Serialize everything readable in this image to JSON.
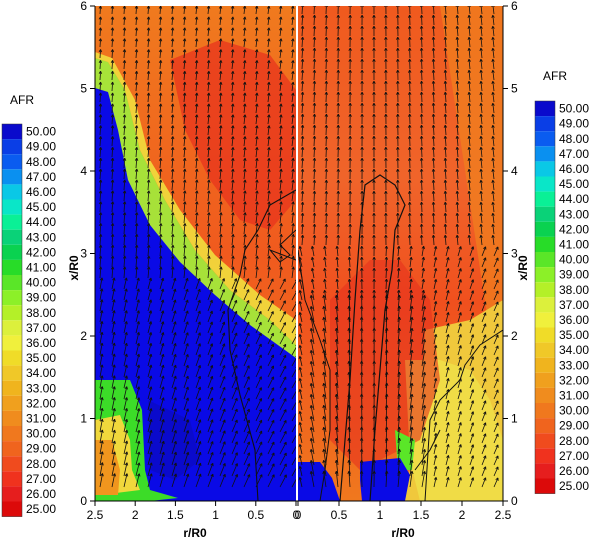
{
  "chart_data": {
    "type": "heatmap",
    "title": "",
    "xlabel": "r/R0",
    "ylabel": "x/R0",
    "panels": [
      {
        "name": "left",
        "x_ticks": [
          "2.5",
          "2",
          "1.5",
          "1",
          "0.5",
          "0"
        ],
        "x_range": [
          2.5,
          0
        ],
        "y_ticks": [
          "0",
          "1",
          "2",
          "3",
          "4",
          "5",
          "6"
        ],
        "y_range": [
          0,
          6
        ]
      },
      {
        "name": "right",
        "x_ticks": [
          "0",
          "0.5",
          "1",
          "1.5",
          "2",
          "2.5"
        ],
        "x_range": [
          0,
          2.5
        ],
        "y_ticks": [
          "0",
          "1",
          "2",
          "3",
          "4",
          "5",
          "6"
        ],
        "y_range": [
          0,
          6
        ]
      }
    ],
    "colorbar": {
      "label": "AFR",
      "min": 25.0,
      "max": 50.0,
      "levels": [
        "50.00",
        "49.00",
        "48.00",
        "47.00",
        "46.00",
        "45.00",
        "44.00",
        "43.00",
        "42.00",
        "41.00",
        "40.00",
        "39.00",
        "38.00",
        "37.00",
        "36.00",
        "35.00",
        "34.00",
        "33.00",
        "32.00",
        "31.00",
        "30.00",
        "29.00",
        "28.00",
        "27.00",
        "26.00",
        "25.00"
      ],
      "colors": [
        "#0a0acc",
        "#0a3ee6",
        "#0a5cf0",
        "#0a90f0",
        "#0ac8e6",
        "#0ae6c8",
        "#0af096",
        "#0ad278",
        "#0ad250",
        "#28dc28",
        "#5ae628",
        "#8cf028",
        "#b4f028",
        "#dcf03c",
        "#f0f03c",
        "#f0dc28",
        "#f0c828",
        "#f0b41e",
        "#f0a01e",
        "#f08c1e",
        "#f0781e",
        "#f0641e",
        "#f04b1e",
        "#f0321e",
        "#e61e1e",
        "#dc0a0a"
      ],
      "placement": [
        "left",
        "right"
      ]
    }
  }
}
